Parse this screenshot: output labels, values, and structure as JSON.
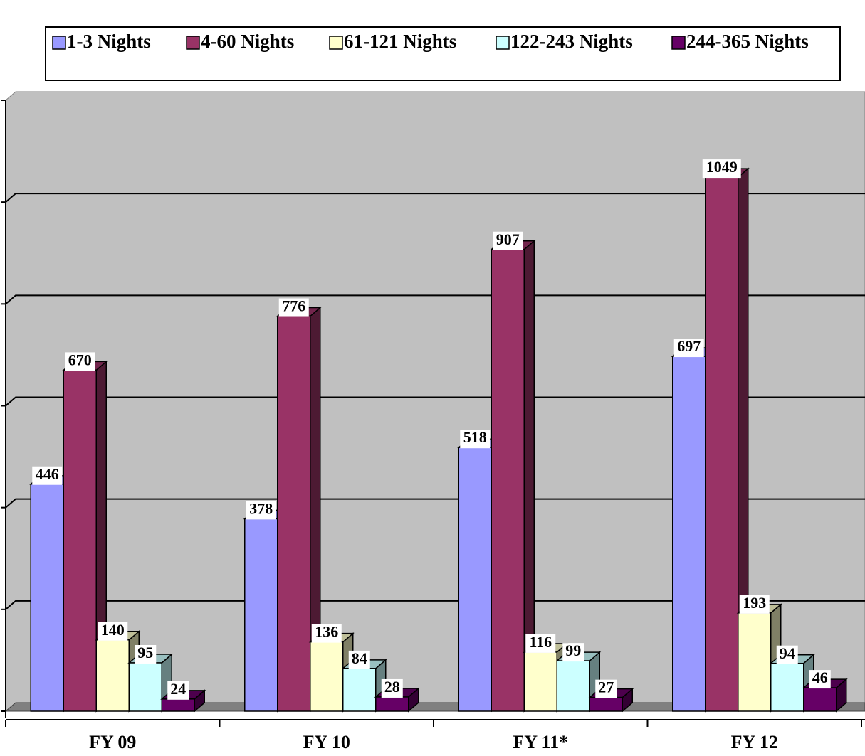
{
  "chart_data": {
    "type": "bar3d",
    "categories": [
      "FY 09",
      "FY 10",
      "FY 11*",
      "FY 12"
    ],
    "series": [
      {
        "name": "1-3 Nights",
        "color": "#9999ff",
        "values": [
          446,
          378,
          518,
          697
        ]
      },
      {
        "name": "4-60 Nights",
        "color": "#993366",
        "values": [
          670,
          776,
          907,
          1049
        ]
      },
      {
        "name": "61-121 Nights",
        "color": "#ffffcc",
        "values": [
          140,
          136,
          116,
          193
        ]
      },
      {
        "name": "122-243 Nights",
        "color": "#ccffff",
        "values": [
          95,
          84,
          99,
          94
        ]
      },
      {
        "name": "244-365 Nights",
        "color": "#660066",
        "values": [
          24,
          28,
          27,
          46
        ]
      }
    ],
    "ylim": [
      0,
      1200
    ],
    "yticks": [
      0,
      200,
      400,
      600,
      800,
      1000,
      1200
    ],
    "grid": true,
    "legend": "top",
    "wall_color": "#c0c0c0"
  }
}
